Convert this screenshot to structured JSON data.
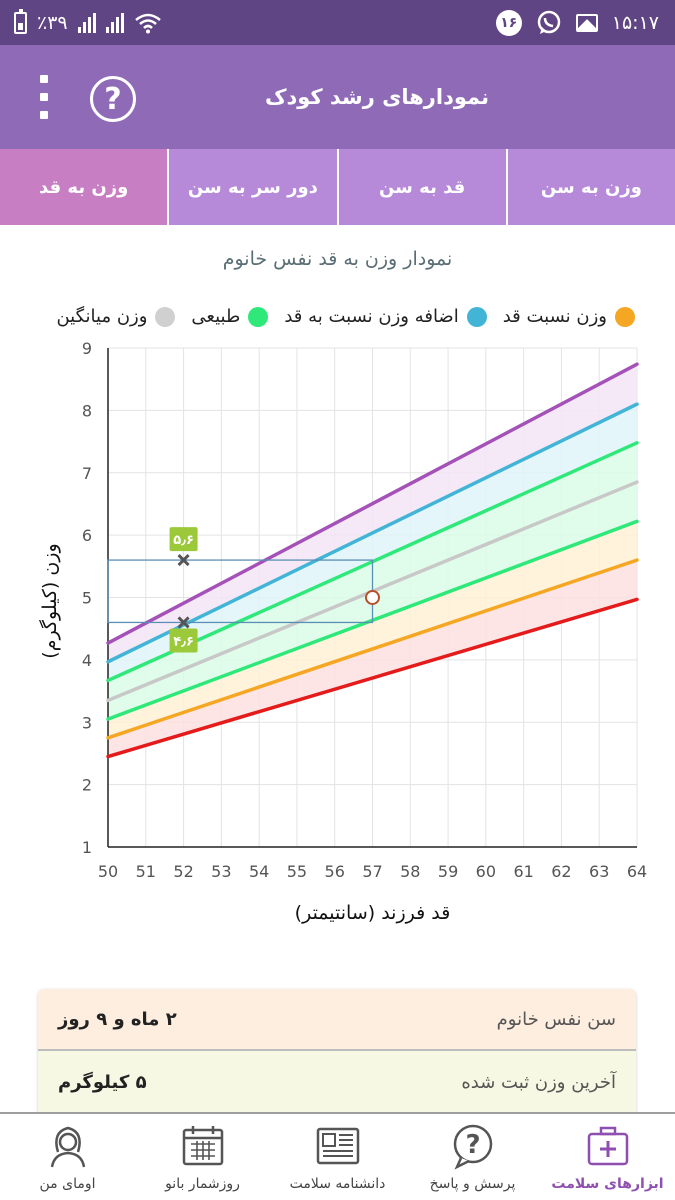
{
  "status_bar": {
    "battery_text": "٪۳۹",
    "notification_count": "۱۶",
    "time": "۱۵:۱۷",
    "icons": [
      "battery-icon",
      "signal-icon",
      "signal-icon",
      "wifi-icon",
      "whatsapp-icon",
      "image-icon"
    ]
  },
  "app_bar": {
    "title": "نمودارهای رشد کودک",
    "help_symbol": "?",
    "icons": [
      "help-icon",
      "more-vert-icon"
    ]
  },
  "tabs": [
    {
      "label": "وزن به سن",
      "active": false
    },
    {
      "label": "قد به سن",
      "active": false
    },
    {
      "label": "دور سر به سن",
      "active": false
    },
    {
      "label": "وزن به قد",
      "active": true
    }
  ],
  "chart": {
    "title": "نمودار وزن به قد نفس خانوم",
    "legend": [
      {
        "label": "وزن نسبت قد",
        "color": "#f5a623"
      },
      {
        "label": "اضافه وزن نسبت به قد",
        "color": "#42b4d6"
      },
      {
        "label": "طبیعی",
        "color": "#2ee87a"
      },
      {
        "label": "وزن میانگین",
        "color": "#d0d0d0"
      }
    ],
    "ylabel": "وزن (کیلوگرم)",
    "xlabel": "قد فرزند (سانتیمتر)"
  },
  "chart_data": {
    "type": "line",
    "x_ticks": [
      50,
      51,
      52,
      53,
      54,
      55,
      56,
      57,
      58,
      59,
      60,
      61,
      62,
      63,
      64
    ],
    "y_ticks": [
      1,
      2,
      3,
      4,
      5,
      6,
      7,
      8,
      9
    ],
    "xlim": [
      50,
      64
    ],
    "ylim": [
      1,
      9
    ],
    "x": [
      50,
      64
    ],
    "grid": true,
    "series": [
      {
        "color": "#e51b1b",
        "values": [
          2.45,
          4.97
        ]
      },
      {
        "color": "#f5a623",
        "values": [
          2.75,
          5.6
        ]
      },
      {
        "color": "#2ee87a",
        "values": [
          3.05,
          6.22
        ]
      },
      {
        "color": "#c8c8c8",
        "values": [
          3.35,
          6.85
        ]
      },
      {
        "color": "#2ee87a",
        "values": [
          3.67,
          7.48
        ]
      },
      {
        "color": "#42b4d6",
        "values": [
          3.97,
          8.1
        ]
      },
      {
        "color": "#a452b8",
        "values": [
          4.27,
          8.74
        ]
      }
    ],
    "band_colors": [
      "#fde0e0",
      "#fff1d6",
      "#dbfbe6",
      "#dbfbe6",
      "#dff4f8",
      "#f4e5f6"
    ],
    "range_box": {
      "x": [
        50,
        57
      ],
      "y": [
        4.6,
        5.6
      ],
      "color": "#5a8fb5"
    },
    "markers": [
      {
        "x": 52,
        "y": 5.6,
        "label": "۵٫۶"
      },
      {
        "x": 52,
        "y": 4.6,
        "label": "۴٫۶"
      }
    ],
    "current_point": {
      "x": 57,
      "y": 5.0
    }
  },
  "info_card": {
    "age_label": "سن نفس خانوم",
    "age_value": "۲ ماه و ۹ روز",
    "weight_label": "آخرین وزن ثبت شده",
    "weight_value": "۵ کیلوگرم"
  },
  "bottom_nav": [
    {
      "label": "ابزارهای سلامت",
      "icon": "medical-kit-icon",
      "active": true
    },
    {
      "label": "پرسش و پاسخ",
      "icon": "question-bubble-icon",
      "active": false
    },
    {
      "label": "دانشنامه سلامت",
      "icon": "newspaper-icon",
      "active": false
    },
    {
      "label": "روزشمار بانو",
      "icon": "calendar-icon",
      "active": false
    },
    {
      "label": "اومای من",
      "icon": "woman-avatar-icon",
      "active": false
    }
  ],
  "colors": {
    "status_bar": "#5f4583",
    "app_bar": "#8f6bb7",
    "tab_bg": "#b68ad9",
    "tab_active": "#c77ec3",
    "accent_purple": "#8f4fb0"
  }
}
